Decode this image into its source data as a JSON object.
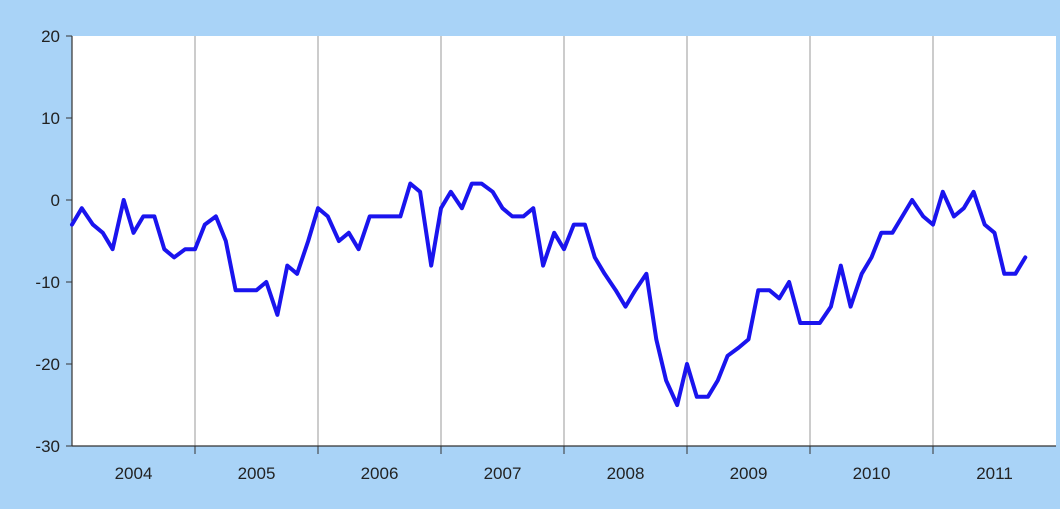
{
  "chart_data": {
    "type": "line",
    "title": "",
    "xlabel": "",
    "ylabel": "",
    "ylim": [
      -30,
      20
    ],
    "yticks": [
      20,
      10,
      0,
      -10,
      -20,
      -30
    ],
    "xlim": [
      2004,
      2012
    ],
    "year_labels": [
      "2004",
      "2005",
      "2006",
      "2007",
      "2008",
      "2009",
      "2010",
      "2011"
    ],
    "year_dividers": [
      2004,
      2005,
      2006,
      2007,
      2008,
      2009,
      2010,
      2011
    ],
    "grid": "vertical dividers at year boundaries",
    "legend": "none",
    "series": [
      {
        "color": "#1a14ee",
        "values": [
          [
            2004.0,
            -3
          ],
          [
            2004.08,
            -1
          ],
          [
            2004.17,
            -3
          ],
          [
            2004.25,
            -4
          ],
          [
            2004.33,
            -6
          ],
          [
            2004.42,
            0
          ],
          [
            2004.5,
            -4
          ],
          [
            2004.58,
            -2
          ],
          [
            2004.67,
            -2
          ],
          [
            2004.75,
            -6
          ],
          [
            2004.83,
            -7
          ],
          [
            2004.92,
            -6
          ],
          [
            2005.0,
            -6
          ],
          [
            2005.08,
            -3
          ],
          [
            2005.17,
            -2
          ],
          [
            2005.25,
            -5
          ],
          [
            2005.33,
            -11
          ],
          [
            2005.42,
            -11
          ],
          [
            2005.5,
            -11
          ],
          [
            2005.58,
            -10
          ],
          [
            2005.67,
            -14
          ],
          [
            2005.75,
            -8
          ],
          [
            2005.83,
            -9
          ],
          [
            2005.92,
            -5
          ],
          [
            2006.0,
            -1
          ],
          [
            2006.08,
            -2
          ],
          [
            2006.17,
            -5
          ],
          [
            2006.25,
            -4
          ],
          [
            2006.33,
            -6
          ],
          [
            2006.42,
            -2
          ],
          [
            2006.5,
            -2
          ],
          [
            2006.58,
            -2
          ],
          [
            2006.67,
            -2
          ],
          [
            2006.75,
            2
          ],
          [
            2006.83,
            1
          ],
          [
            2006.92,
            -8
          ],
          [
            2007.0,
            -1
          ],
          [
            2007.08,
            1
          ],
          [
            2007.17,
            -1
          ],
          [
            2007.25,
            2
          ],
          [
            2007.33,
            2
          ],
          [
            2007.42,
            1
          ],
          [
            2007.5,
            -1
          ],
          [
            2007.58,
            -2
          ],
          [
            2007.67,
            -2
          ],
          [
            2007.75,
            -1
          ],
          [
            2007.83,
            -8
          ],
          [
            2007.92,
            -4
          ],
          [
            2008.0,
            -6
          ],
          [
            2008.08,
            -3
          ],
          [
            2008.17,
            -3
          ],
          [
            2008.25,
            -7
          ],
          [
            2008.33,
            -9
          ],
          [
            2008.42,
            -11
          ],
          [
            2008.5,
            -13
          ],
          [
            2008.58,
            -11
          ],
          [
            2008.67,
            -9
          ],
          [
            2008.75,
            -17
          ],
          [
            2008.83,
            -22
          ],
          [
            2008.92,
            -25
          ],
          [
            2009.0,
            -20
          ],
          [
            2009.08,
            -24
          ],
          [
            2009.17,
            -24
          ],
          [
            2009.25,
            -22
          ],
          [
            2009.33,
            -19
          ],
          [
            2009.42,
            -18
          ],
          [
            2009.5,
            -17
          ],
          [
            2009.58,
            -11
          ],
          [
            2009.67,
            -11
          ],
          [
            2009.75,
            -12
          ],
          [
            2009.83,
            -10
          ],
          [
            2009.92,
            -15
          ],
          [
            2010.0,
            -15
          ],
          [
            2010.08,
            -15
          ],
          [
            2010.17,
            -13
          ],
          [
            2010.25,
            -8
          ],
          [
            2010.33,
            -13
          ],
          [
            2010.42,
            -9
          ],
          [
            2010.5,
            -7
          ],
          [
            2010.58,
            -4
          ],
          [
            2010.67,
            -4
          ],
          [
            2010.75,
            -2
          ],
          [
            2010.83,
            0
          ],
          [
            2010.92,
            -2
          ],
          [
            2011.0,
            -3
          ],
          [
            2011.08,
            1
          ],
          [
            2011.17,
            -2
          ],
          [
            2011.25,
            -1
          ],
          [
            2011.33,
            1
          ],
          [
            2011.42,
            -3
          ],
          [
            2011.5,
            -4
          ],
          [
            2011.58,
            -9
          ],
          [
            2011.67,
            -9
          ],
          [
            2011.75,
            -7
          ]
        ]
      }
    ]
  }
}
